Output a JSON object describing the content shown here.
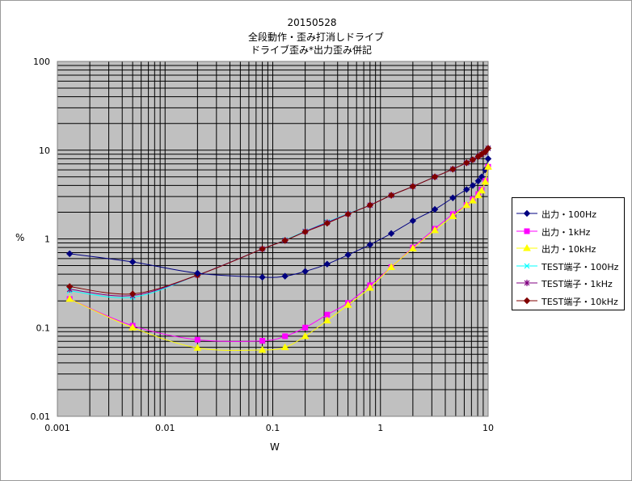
{
  "chart_data": {
    "type": "line",
    "title_lines": [
      "20150528",
      "全段動作・歪み打消しドライブ",
      "ドライブ歪み*出力歪み併記"
    ],
    "xlabel": "W",
    "ylabel": "%",
    "x_scale": "log",
    "y_scale": "log",
    "xlim": [
      0.001,
      10
    ],
    "ylim": [
      0.01,
      100
    ],
    "x_ticks": [
      "0.001",
      "0.01",
      "0.1",
      "1",
      "10"
    ],
    "y_ticks": [
      "100",
      "10",
      "1",
      "0.1",
      "0.01"
    ],
    "grid": true,
    "plot_background": "#c0c0c0",
    "legend_position": "right",
    "series": [
      {
        "name": "出力・100Hz",
        "color": "#000080",
        "marker": "diamond",
        "x": [
          0.0013,
          0.005,
          0.02,
          0.08,
          0.13,
          0.2,
          0.32,
          0.5,
          0.8,
          1.26,
          2,
          3.2,
          4.7,
          6.3,
          7.2,
          8.1,
          8.7,
          9.4,
          10
        ],
        "y": [
          0.68,
          0.55,
          0.41,
          0.37,
          0.38,
          0.43,
          0.52,
          0.66,
          0.86,
          1.15,
          1.6,
          2.15,
          2.9,
          3.6,
          4.0,
          4.5,
          5.0,
          6.0,
          8.0
        ]
      },
      {
        "name": "出力・1kHz",
        "color": "#ff00ff",
        "marker": "square",
        "x": [
          0.0013,
          0.005,
          0.02,
          0.08,
          0.13,
          0.2,
          0.32,
          0.5,
          0.8,
          1.26,
          2,
          3.2,
          4.7,
          6.3,
          7.2,
          8.1,
          8.7,
          9.4,
          10
        ],
        "y": [
          0.21,
          0.105,
          0.073,
          0.071,
          0.08,
          0.1,
          0.14,
          0.19,
          0.3,
          0.48,
          0.8,
          1.3,
          1.9,
          2.4,
          2.8,
          3.2,
          3.6,
          4.5,
          6.5
        ]
      },
      {
        "name": "出力・10kHz",
        "color": "#ffff00",
        "marker": "triangle",
        "x": [
          0.0013,
          0.005,
          0.02,
          0.08,
          0.13,
          0.2,
          0.32,
          0.5,
          0.8,
          1.26,
          2,
          3.2,
          4.7,
          6.3,
          7.2,
          8.1,
          8.7,
          9.4,
          10
        ],
        "y": [
          0.21,
          0.1,
          0.059,
          0.056,
          0.06,
          0.08,
          0.12,
          0.18,
          0.28,
          0.48,
          0.78,
          1.25,
          1.8,
          2.4,
          2.7,
          3.1,
          3.5,
          4.4,
          6.5
        ]
      },
      {
        "name": "TEST端子・100Hz",
        "color": "#00ffff",
        "marker": "x",
        "x": [
          0.0013,
          0.005,
          0.02,
          0.08,
          0.13,
          0.2,
          0.32,
          0.5,
          0.8,
          1.26,
          2,
          3.2,
          4.7,
          6.3,
          7.2,
          8.1,
          8.7,
          9.4,
          10
        ],
        "y": [
          0.26,
          0.22,
          0.39,
          0.77,
          0.97,
          1.22,
          1.55,
          1.93,
          2.4,
          3.1,
          3.9,
          5.0,
          6.1,
          7.2,
          7.8,
          8.5,
          9.0,
          9.5,
          10.5
        ]
      },
      {
        "name": "TEST端子・1kHz",
        "color": "#800080",
        "marker": "star",
        "x": [
          0.0013,
          0.005,
          0.02,
          0.08,
          0.13,
          0.2,
          0.32,
          0.5,
          0.8,
          1.26,
          2,
          3.2,
          4.7,
          6.3,
          7.2,
          8.1,
          8.7,
          9.4,
          10
        ],
        "y": [
          0.27,
          0.23,
          0.39,
          0.77,
          0.96,
          1.21,
          1.53,
          1.91,
          2.4,
          3.1,
          3.9,
          5.0,
          6.1,
          7.2,
          7.8,
          8.5,
          9.0,
          9.5,
          10.5
        ]
      },
      {
        "name": "TEST端子・10kHz",
        "color": "#800000",
        "marker": "diamond",
        "x": [
          0.0013,
          0.005,
          0.02,
          0.08,
          0.13,
          0.2,
          0.32,
          0.5,
          0.8,
          1.26,
          2,
          3.2,
          4.7,
          6.3,
          7.2,
          8.1,
          8.7,
          9.4,
          10
        ],
        "y": [
          0.29,
          0.24,
          0.39,
          0.77,
          0.96,
          1.2,
          1.5,
          1.9,
          2.4,
          3.1,
          3.9,
          5.0,
          6.1,
          7.2,
          7.8,
          8.5,
          9.0,
          9.6,
          10.5
        ]
      }
    ]
  }
}
